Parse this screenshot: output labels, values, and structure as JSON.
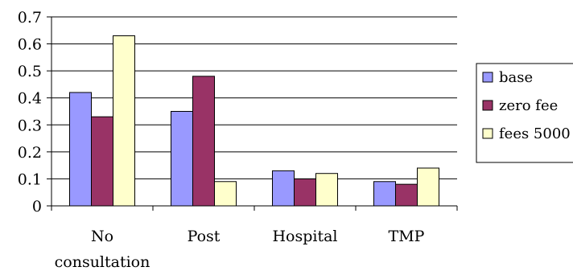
{
  "chart_data": {
    "type": "bar",
    "categories": [
      [
        "No",
        "consultation"
      ],
      [
        "Post"
      ],
      [
        "Hospital"
      ],
      [
        "TMP"
      ]
    ],
    "series": [
      {
        "name": "base",
        "values": [
          0.42,
          0.35,
          0.13,
          0.09
        ],
        "color": "#9999ff"
      },
      {
        "name": "zero fee",
        "values": [
          0.33,
          0.48,
          0.1,
          0.08
        ],
        "color": "#993366"
      },
      {
        "name": "fees 5000",
        "values": [
          0.63,
          0.09,
          0.12,
          0.14
        ],
        "color": "#ffffcc"
      }
    ],
    "yticks": [
      "0",
      "0.1",
      "0.2",
      "0.3",
      "0.4",
      "0.5",
      "0.6",
      "0.7"
    ],
    "ylim": [
      0,
      0.7
    ],
    "grid": true,
    "legend": "right"
  }
}
